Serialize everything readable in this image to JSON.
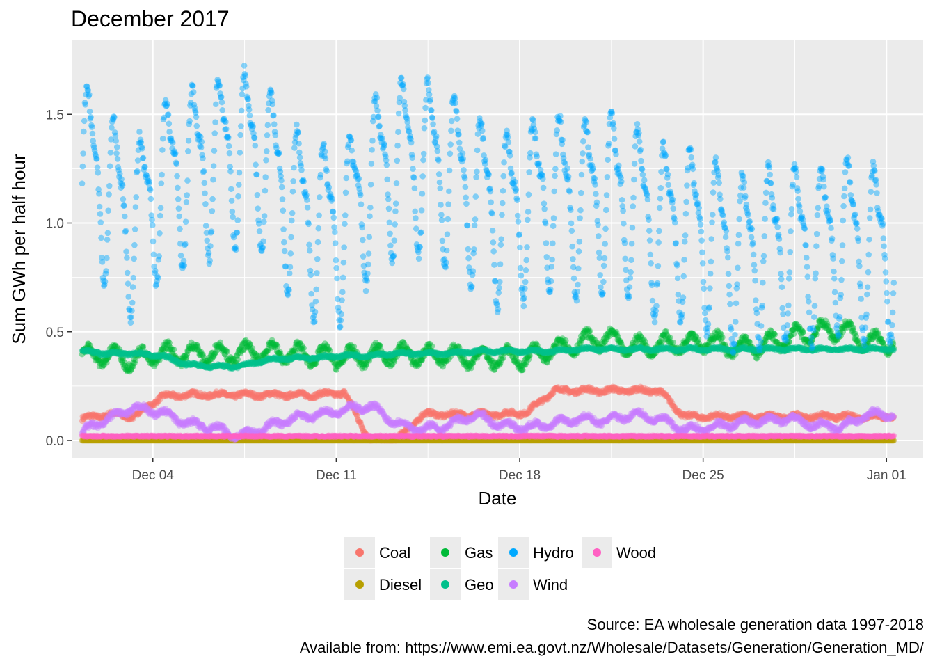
{
  "chart_data": {
    "type": "scatter",
    "title": "December 2017",
    "xlabel": "Date",
    "ylabel": "Sum GWh per half hour",
    "x_ticks": [
      "Dec 04",
      "Dec 11",
      "Dec 18",
      "Dec 25",
      "Jan 01"
    ],
    "x_tick_days": [
      4,
      11,
      18,
      25,
      32
    ],
    "x_range_days": [
      0.9,
      33.4
    ],
    "x_start": "2017-12-01",
    "x_end": "2018-01-01",
    "y_ticks": [
      "0.0",
      "0.5",
      "1.0",
      "1.5"
    ],
    "y_tick_values": [
      0,
      0.5,
      1.0,
      1.5
    ],
    "ylim": [
      -0.08,
      1.84
    ],
    "grid": true,
    "legend_position": "bottom",
    "series": [
      {
        "name": "Coal",
        "color": "#F8766D",
        "daily_values": [
          0.1,
          0.12,
          0.11,
          0.2,
          0.21,
          0.21,
          0.21,
          0.21,
          0.21,
          0.21,
          0.22,
          0.0,
          0.0,
          0.12,
          0.12,
          0.12,
          0.12,
          0.13,
          0.23,
          0.23,
          0.23,
          0.23,
          0.23,
          0.11,
          0.11,
          0.11,
          0.11,
          0.11,
          0.11,
          0.11,
          0.11
        ]
      },
      {
        "name": "Diesel",
        "color": "#B79F00",
        "daily_values": [
          0.0,
          0.0,
          0.0,
          0.0,
          0.0,
          0.0,
          0.0,
          0.0,
          0.0,
          0.0,
          0.0,
          0.0,
          0.0,
          0.0,
          0.0,
          0.0,
          0.0,
          0.0,
          0.0,
          0.0,
          0.0,
          0.0,
          0.0,
          0.0,
          0.0,
          0.0,
          0.0,
          0.0,
          0.0,
          0.0,
          0.0
        ]
      },
      {
        "name": "Gas",
        "color": "#00BA38",
        "daily_values": [
          0.39,
          0.39,
          0.37,
          0.4,
          0.4,
          0.4,
          0.4,
          0.41,
          0.4,
          0.39,
          0.38,
          0.39,
          0.4,
          0.39,
          0.39,
          0.38,
          0.38,
          0.38,
          0.42,
          0.45,
          0.47,
          0.43,
          0.44,
          0.45,
          0.46,
          0.42,
          0.44,
          0.47,
          0.5,
          0.51,
          0.45
        ]
      },
      {
        "name": "Geo",
        "color": "#00C08B",
        "daily_values": [
          0.41,
          0.4,
          0.4,
          0.39,
          0.35,
          0.34,
          0.34,
          0.37,
          0.38,
          0.38,
          0.39,
          0.39,
          0.4,
          0.4,
          0.4,
          0.41,
          0.41,
          0.41,
          0.41,
          0.42,
          0.42,
          0.42,
          0.42,
          0.42,
          0.42,
          0.42,
          0.42,
          0.42,
          0.42,
          0.42,
          0.42
        ]
      },
      {
        "name": "Hydro",
        "color": "#00A9FF",
        "daily_values": [
          1.3,
          1.15,
          1.0,
          1.2,
          1.25,
          1.3,
          1.35,
          1.3,
          1.1,
          1.0,
          1.0,
          1.2,
          1.3,
          1.3,
          1.25,
          1.15,
          1.05,
          1.1,
          1.15,
          1.1,
          1.15,
          1.1,
          1.0,
          1.0,
          0.95,
          0.85,
          0.9,
          0.9,
          0.9,
          0.95,
          0.9
        ]
      },
      {
        "name": "Wind",
        "color": "#C77CFF",
        "daily_values": [
          0.04,
          0.1,
          0.15,
          0.13,
          0.08,
          0.06,
          0.02,
          0.06,
          0.1,
          0.12,
          0.14,
          0.16,
          0.08,
          0.05,
          0.07,
          0.12,
          0.07,
          0.06,
          0.08,
          0.1,
          0.09,
          0.12,
          0.1,
          0.05,
          0.06,
          0.08,
          0.09,
          0.1,
          0.07,
          0.06,
          0.12
        ]
      },
      {
        "name": "Wood",
        "color": "#FF61C3",
        "daily_values": [
          0.02,
          0.02,
          0.02,
          0.02,
          0.02,
          0.02,
          0.02,
          0.02,
          0.02,
          0.02,
          0.02,
          0.02,
          0.02,
          0.02,
          0.02,
          0.02,
          0.02,
          0.02,
          0.02,
          0.02,
          0.02,
          0.02,
          0.02,
          0.02,
          0.02,
          0.02,
          0.02,
          0.02,
          0.02,
          0.02,
          0.02
        ]
      }
    ],
    "caption": [
      "Source: EA wholesale generation data 1997-2018",
      "Available from: https://www.emi.ea.govt.nz/Wholesale/Datasets/Generation/Generation_MD/"
    ]
  }
}
